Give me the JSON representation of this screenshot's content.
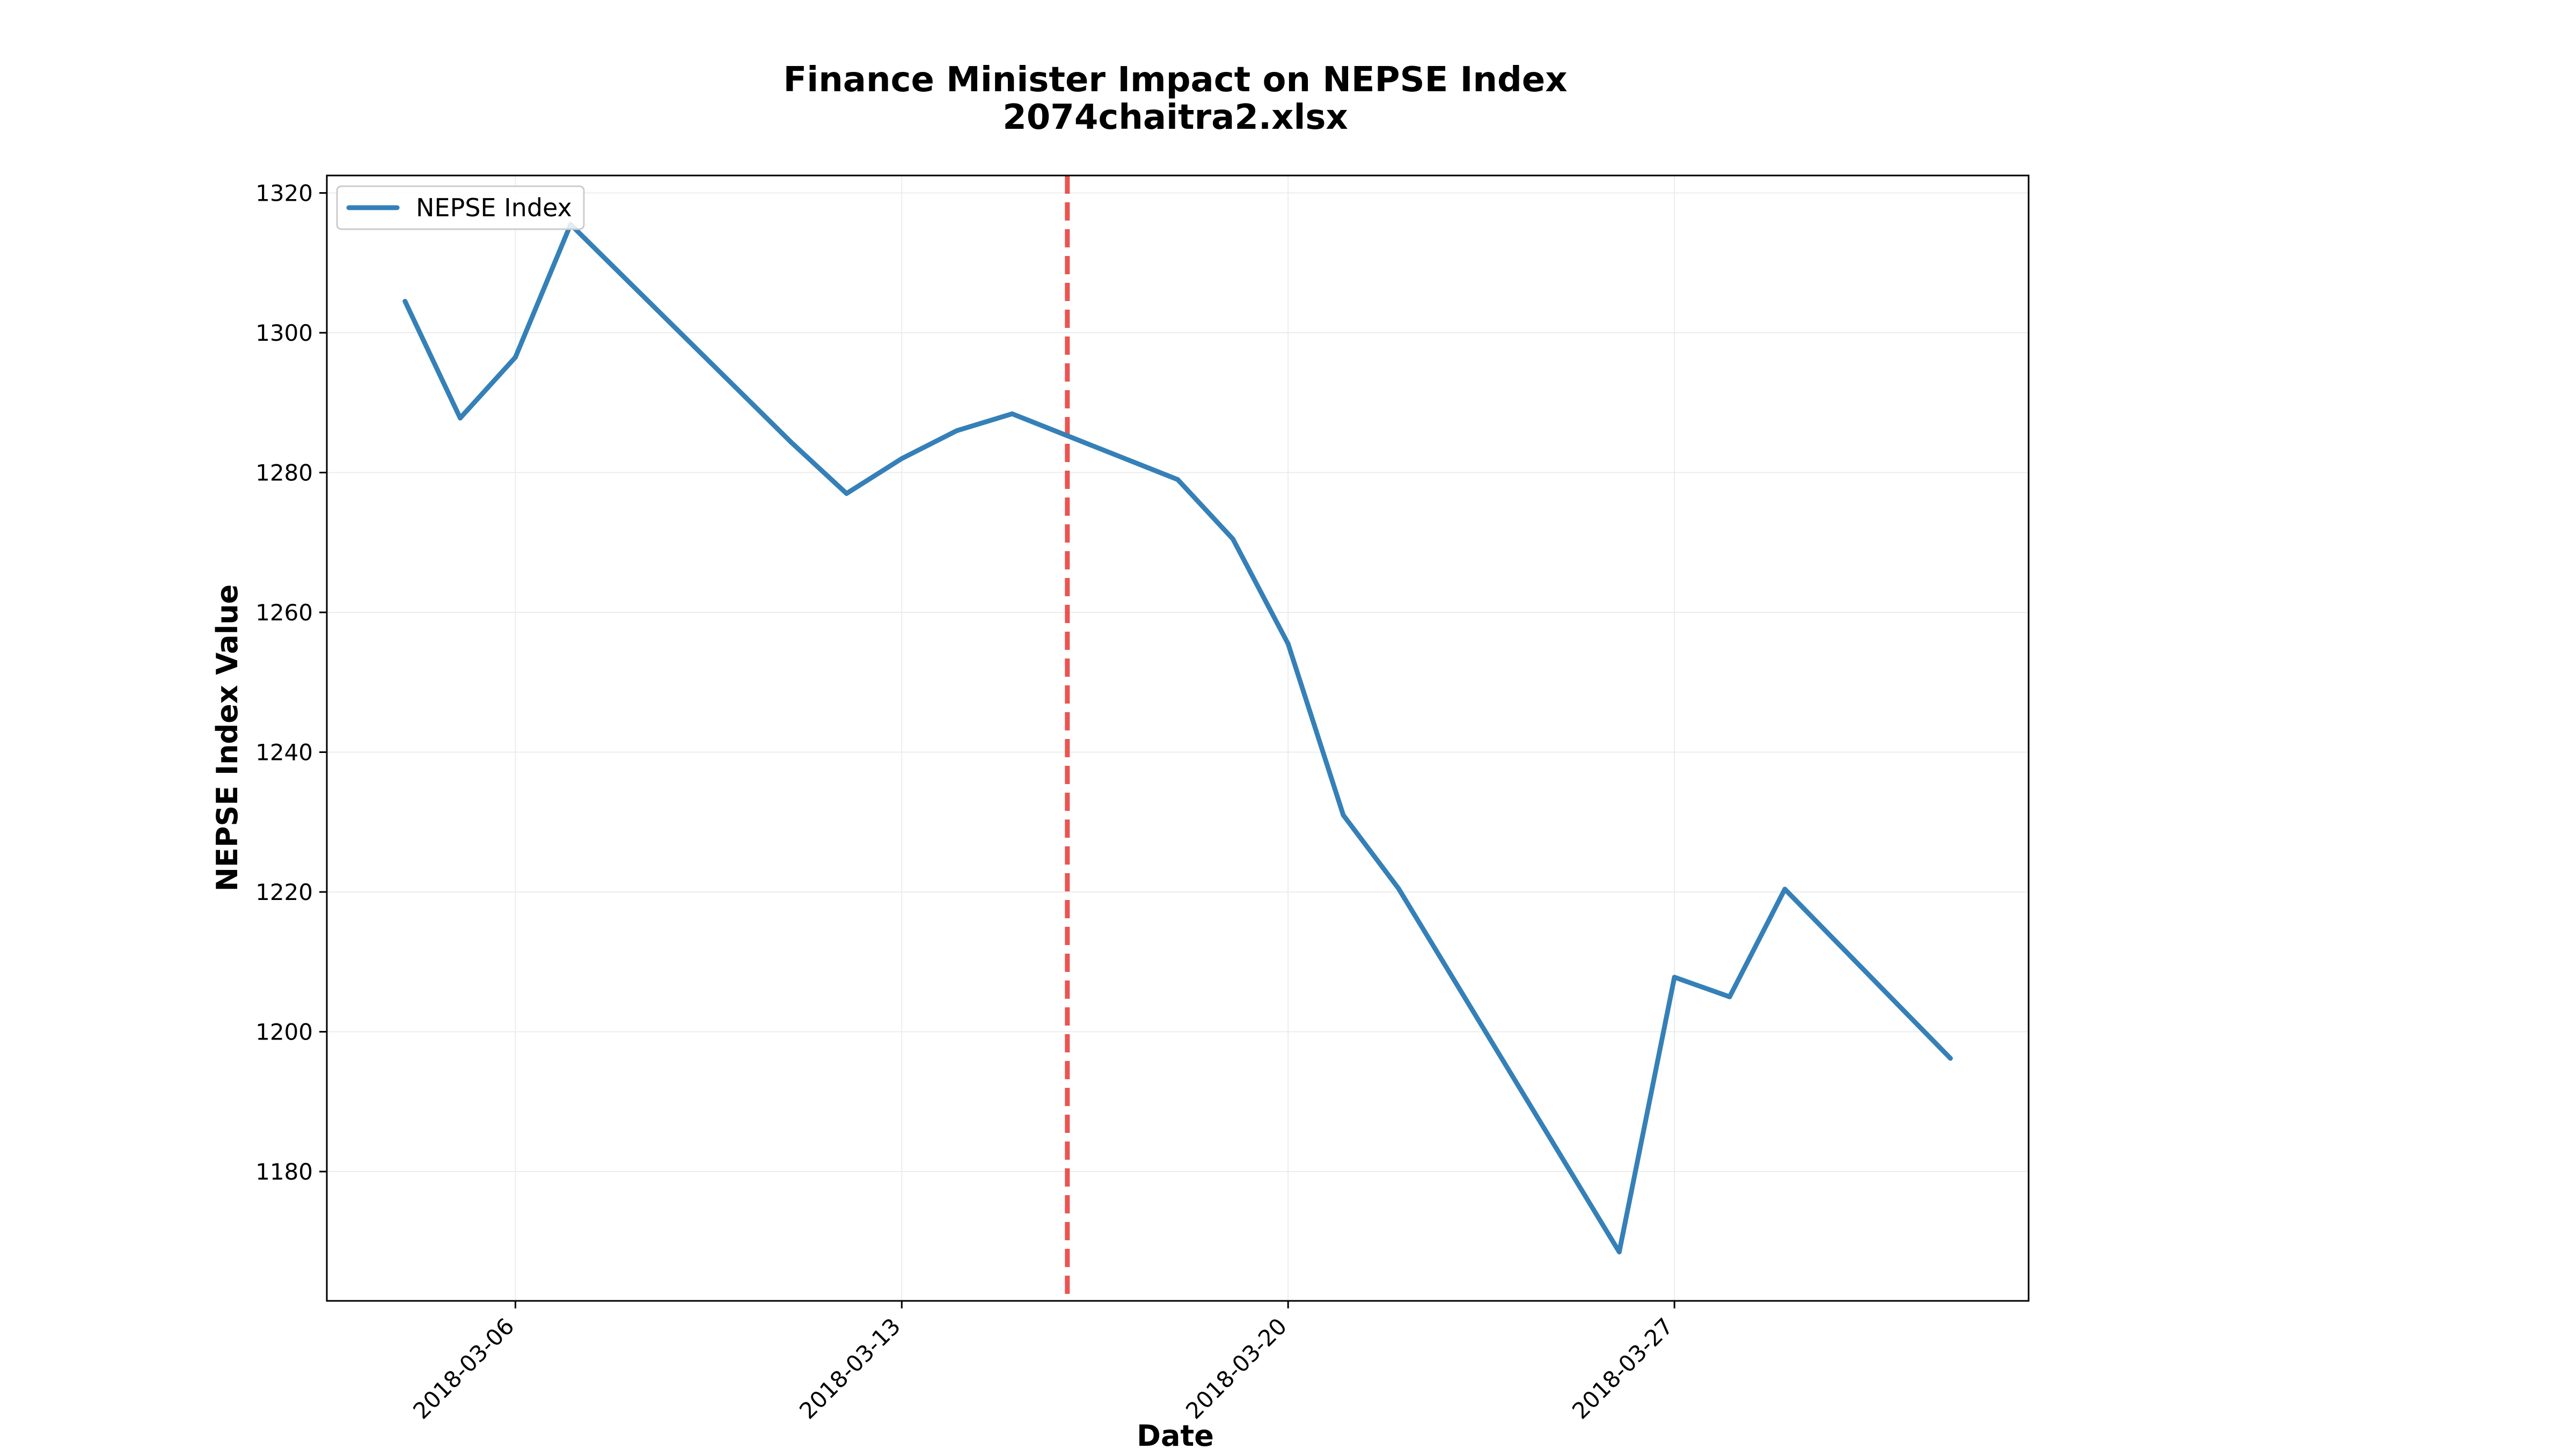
{
  "chart_data": {
    "type": "line",
    "title": "Finance Minister Impact on NEPSE Index",
    "subtitle": "2074chaitra2.xlsx",
    "xlabel": "Date",
    "ylabel": "NEPSE Index Value",
    "xlim": [
      "2018-03-02T14:00",
      "2018-04-02T10:00"
    ],
    "ylim": [
      1161.5,
      1322.5
    ],
    "x_ticks": [
      "2018-03-06",
      "2018-03-13",
      "2018-03-20",
      "2018-03-27"
    ],
    "y_ticks": [
      1180,
      1200,
      1220,
      1240,
      1260,
      1280,
      1300,
      1320
    ],
    "grid": true,
    "legend": "top-left",
    "vline": {
      "x": "2018-03-16",
      "color": "#e8423f",
      "style": "dashed"
    },
    "series": [
      {
        "name": "NEPSE Index",
        "color": "#3580b8",
        "points": [
          [
            "2018-03-04",
            1304.5
          ],
          [
            "2018-03-05",
            1287.8
          ],
          [
            "2018-03-06",
            1296.5
          ],
          [
            "2018-03-07",
            1315.5
          ],
          [
            "2018-03-11",
            1284.3
          ],
          [
            "2018-03-12",
            1277.0
          ],
          [
            "2018-03-13",
            1282.0
          ],
          [
            "2018-03-14",
            1286.0
          ],
          [
            "2018-03-15",
            1288.4
          ],
          [
            "2018-03-18",
            1279.0
          ],
          [
            "2018-03-19",
            1270.5
          ],
          [
            "2018-03-20",
            1255.5
          ],
          [
            "2018-03-21",
            1231.0
          ],
          [
            "2018-03-22",
            1220.5
          ],
          [
            "2018-03-26",
            1168.5
          ],
          [
            "2018-03-27",
            1207.8
          ],
          [
            "2018-03-28",
            1205.0
          ],
          [
            "2018-03-29",
            1220.4
          ],
          [
            "2018-04-01",
            1196.2
          ]
        ]
      }
    ]
  }
}
